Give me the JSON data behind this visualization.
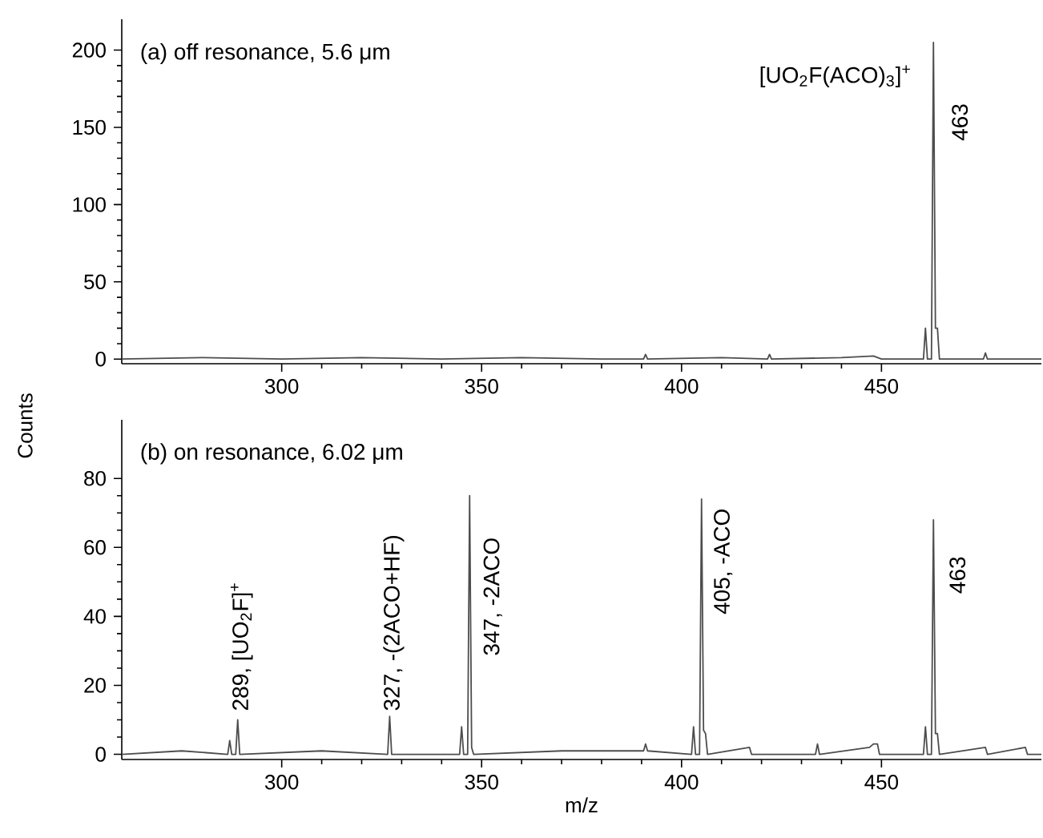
{
  "chart_data": [
    {
      "type": "line",
      "title": "(a) off resonance, 5.6 μm",
      "ylabel": "Counts",
      "xlim": [
        260,
        490
      ],
      "xticks": [
        300,
        350,
        400,
        450
      ],
      "ylim": [
        -3,
        220
      ],
      "yticks": [
        0,
        50,
        100,
        150,
        200
      ],
      "series": [
        {
          "color": "#4d4d4d",
          "x": [
            260,
            280,
            300,
            320,
            340,
            360,
            380,
            390.5,
            391,
            391.5,
            410,
            421.5,
            422,
            422.5,
            440,
            448,
            450,
            460.5,
            461,
            461.5,
            462.5,
            463,
            463.5,
            464,
            464.5,
            475.5,
            476,
            476.5,
            490
          ],
          "values": [
            0,
            1,
            0,
            1,
            0,
            1,
            0,
            0,
            3,
            0,
            1,
            0,
            3,
            0,
            1,
            2,
            0,
            0,
            20,
            0,
            0,
            205,
            20,
            20,
            0,
            0,
            4,
            0,
            0
          ]
        }
      ],
      "annotations": [
        {
          "text": "[UO$_{2}$F(ACO)$_{3}$]$^{+}$",
          "x": 463,
          "y": 205
        },
        {
          "text": "463",
          "x": 463,
          "y": 205
        }
      ]
    },
    {
      "type": "line",
      "title": "(b) on resonance, 6.02 μm",
      "xlabel": "m/z",
      "xlim": [
        260,
        490
      ],
      "xticks": [
        300,
        350,
        400,
        450
      ],
      "ylim": [
        -1.5,
        97
      ],
      "yticks": [
        0,
        20,
        40,
        60,
        80
      ],
      "series": [
        {
          "color": "#4d4d4d",
          "x": [
            260,
            275,
            286.5,
            287,
            287.5,
            288.5,
            289,
            289.5,
            310,
            326.5,
            327,
            327.5,
            344.5,
            345,
            345.5,
            346.5,
            347,
            347.5,
            348,
            370,
            390.5,
            391,
            391.5,
            402.5,
            403,
            403.5,
            404.5,
            405,
            405.5,
            406,
            406.5,
            417,
            417.5,
            433.5,
            434,
            434.5,
            447,
            448,
            449,
            449.5,
            460.5,
            461,
            461.5,
            462.5,
            463,
            463.5,
            464,
            464.5,
            476,
            476.5,
            486,
            486.5,
            490
          ],
          "values": [
            0,
            1,
            0,
            4,
            0,
            0,
            10,
            0,
            1,
            0,
            11,
            0,
            0,
            8,
            0,
            0,
            75,
            2,
            0,
            1,
            1,
            3,
            1,
            0,
            8,
            0,
            0,
            74,
            7,
            6,
            0,
            2,
            0,
            0,
            3,
            0,
            2,
            3,
            3,
            0,
            0,
            8,
            0,
            0,
            68,
            6,
            6,
            0,
            2,
            0,
            2,
            0,
            0
          ]
        }
      ],
      "annotations": [
        {
          "text": "289, [UO$_{2}$F]$^{+}$",
          "x": 289,
          "y": 10
        },
        {
          "text": "327, -(2ACO+HF)",
          "x": 327,
          "y": 11
        },
        {
          "text": "347, -2ACO",
          "x": 347,
          "y": 75
        },
        {
          "text": "405, -ACO",
          "x": 405,
          "y": 74
        },
        {
          "text": "463",
          "x": 463,
          "y": 68
        }
      ]
    }
  ]
}
